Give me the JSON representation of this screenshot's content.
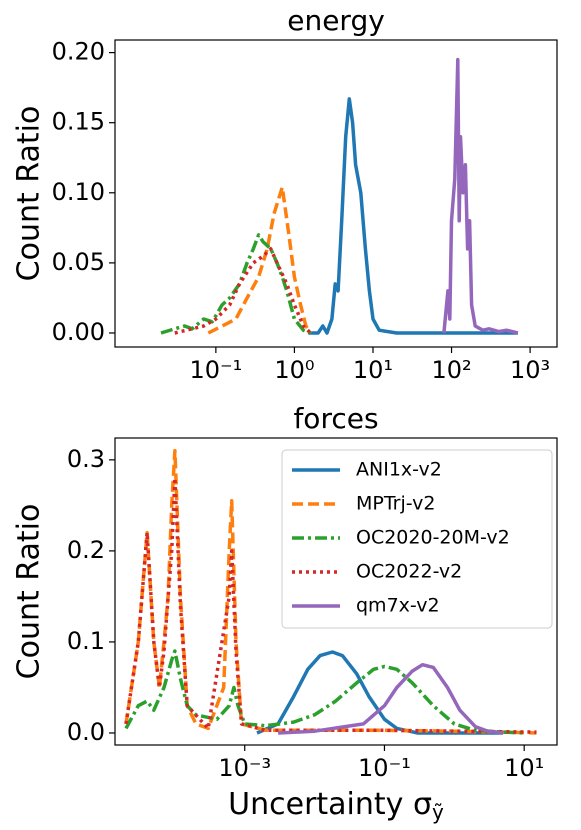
{
  "chart_data": [
    {
      "type": "line",
      "title": "energy",
      "ylabel": "Count Ratio",
      "xscale": "log",
      "xlim": [
        0.0052,
        2200
      ],
      "ylim": [
        -0.01,
        0.209
      ],
      "xticks": [
        {
          "value": 0.1,
          "label": "10⁻¹"
        },
        {
          "value": 1,
          "label": "10⁰"
        },
        {
          "value": 10,
          "label": "10¹"
        },
        {
          "value": 100,
          "label": "10²"
        },
        {
          "value": 1000,
          "label": "10³"
        }
      ],
      "yticks": [
        {
          "value": 0,
          "label": "0.00"
        },
        {
          "value": 0.05,
          "label": "0.05"
        },
        {
          "value": 0.1,
          "label": "0.10"
        },
        {
          "value": 0.15,
          "label": "0.15"
        },
        {
          "value": 0.2,
          "label": "0.20"
        }
      ],
      "series": [
        {
          "color": "#1f77b4",
          "linestyle": "solid",
          "x": [
            1.5,
            2,
            2.3,
            2.6,
            3,
            3.3,
            3.6,
            4,
            4.5,
            5,
            5.5,
            6,
            7,
            8,
            9,
            10,
            12,
            20,
            50,
            100,
            200,
            400,
            700
          ],
          "values": [
            0,
            0,
            0.005,
            0,
            0.01,
            0.035,
            0.03,
            0.08,
            0.14,
            0.167,
            0.15,
            0.12,
            0.1,
            0.06,
            0.03,
            0.01,
            0.002,
            0,
            0,
            0,
            0,
            0,
            0
          ]
        },
        {
          "color": "#ff7f0e",
          "linestyle": "dashed",
          "x": [
            0.08,
            0.12,
            0.18,
            0.25,
            0.35,
            0.45,
            0.55,
            0.7,
            0.85,
            1.0,
            1.2,
            1.4,
            1.6
          ],
          "values": [
            0,
            0.005,
            0.01,
            0.025,
            0.04,
            0.06,
            0.085,
            0.104,
            0.07,
            0.04,
            0.02,
            0.005,
            0
          ]
        },
        {
          "color": "#2ca02c",
          "linestyle": "dashdot",
          "x": [
            0.02,
            0.03,
            0.04,
            0.05,
            0.07,
            0.09,
            0.12,
            0.15,
            0.2,
            0.25,
            0.3,
            0.35,
            0.4,
            0.5,
            0.6,
            0.7,
            0.8,
            1.0,
            1.3,
            1.6
          ],
          "values": [
            0,
            0.003,
            0.005,
            0.003,
            0.01,
            0.008,
            0.02,
            0.025,
            0.035,
            0.05,
            0.06,
            0.07,
            0.065,
            0.06,
            0.05,
            0.04,
            0.03,
            0.01,
            0.002,
            0
          ]
        },
        {
          "color": "#d62728",
          "linestyle": "dotted",
          "x": [
            0.03,
            0.05,
            0.07,
            0.1,
            0.15,
            0.2,
            0.3,
            0.4,
            0.5,
            0.6,
            0.8,
            1,
            1.3,
            1.6
          ],
          "values": [
            0,
            0.003,
            0.005,
            0.01,
            0.02,
            0.035,
            0.05,
            0.055,
            0.06,
            0.05,
            0.035,
            0.02,
            0.005,
            0
          ]
        },
        {
          "color": "#9467bd",
          "linestyle": "solid",
          "x": [
            80,
            90,
            95,
            100,
            110,
            120,
            125,
            130,
            140,
            150,
            160,
            170,
            180,
            200,
            250,
            300,
            400,
            500,
            700
          ],
          "values": [
            0,
            0.03,
            0.01,
            0.08,
            0.11,
            0.195,
            0.08,
            0.14,
            0.1,
            0.12,
            0.06,
            0.08,
            0.02,
            0.005,
            0.002,
            0.003,
            0.001,
            0.002,
            0
          ]
        }
      ]
    },
    {
      "type": "line",
      "title": "forces",
      "ylabel": "Count Ratio",
      "xlabel": "Uncertainty σ",
      "xlabel_sub": "ỹ",
      "xscale": "log",
      "xlim": [
        1.39e-05,
        29.5
      ],
      "ylim": [
        -0.0132,
        0.324
      ],
      "legend": "upper right",
      "xticks": [
        {
          "value": 0.001,
          "label": "10⁻³"
        },
        {
          "value": 0.1,
          "label": "10⁻¹"
        },
        {
          "value": 10,
          "label": "10¹"
        }
      ],
      "yticks": [
        {
          "value": 0,
          "label": "0.0"
        },
        {
          "value": 0.1,
          "label": "0.1"
        },
        {
          "value": 0.2,
          "label": "0.2"
        },
        {
          "value": 0.3,
          "label": "0.3"
        }
      ],
      "series": [
        {
          "name": "ANI1x-v2",
          "color": "#1f77b4",
          "linestyle": "solid",
          "x": [
            0.0015,
            0.003,
            0.005,
            0.008,
            0.012,
            0.018,
            0.025,
            0.04,
            0.06,
            0.1,
            0.15,
            0.3,
            1,
            5
          ],
          "values": [
            0,
            0.01,
            0.04,
            0.07,
            0.085,
            0.089,
            0.085,
            0.065,
            0.04,
            0.015,
            0.005,
            0,
            0,
            0
          ]
        },
        {
          "name": "MPTrj-v2",
          "color": "#ff7f0e",
          "linestyle": "dashed",
          "x": [
            2e-05,
            3e-05,
            4e-05,
            5e-05,
            6e-05,
            7e-05,
            8e-05,
            9e-05,
            0.0001,
            0.00012,
            0.00015,
            0.0002,
            0.0003,
            0.0005,
            0.0006,
            0.00065,
            0.00075,
            0.0009,
            0.002,
            0.01,
            0.1,
            1,
            5,
            15
          ],
          "values": [
            0.01,
            0.1,
            0.22,
            0.1,
            0.05,
            0.1,
            0.15,
            0.25,
            0.31,
            0.15,
            0.03,
            0.01,
            0.005,
            0.05,
            0.2,
            0.255,
            0.1,
            0.01,
            0.003,
            0.003,
            0.003,
            0.002,
            0.001,
            0
          ]
        },
        {
          "name": "OC2020-20M-v2",
          "color": "#2ca02c",
          "linestyle": "dashdot",
          "x": [
            2e-05,
            3e-05,
            4e-05,
            5e-05,
            7e-05,
            9e-05,
            0.0001,
            0.00012,
            0.00015,
            0.0002,
            0.0004,
            0.0006,
            0.0007,
            0.0008,
            0.001,
            0.002,
            0.005,
            0.01,
            0.02,
            0.04,
            0.07,
            0.1,
            0.15,
            0.25,
            0.5,
            1,
            2,
            5,
            10
          ],
          "values": [
            0.005,
            0.03,
            0.035,
            0.025,
            0.05,
            0.08,
            0.09,
            0.06,
            0.03,
            0.02,
            0.015,
            0.03,
            0.05,
            0.03,
            0.01,
            0.008,
            0.012,
            0.02,
            0.035,
            0.055,
            0.07,
            0.073,
            0.07,
            0.055,
            0.03,
            0.01,
            0.003,
            0.001,
            0
          ]
        },
        {
          "name": "OC2022-v2",
          "color": "#d62728",
          "linestyle": "dotted",
          "x": [
            2e-05,
            3e-05,
            4e-05,
            5e-05,
            6e-05,
            7e-05,
            9e-05,
            0.0001,
            0.00012,
            0.00015,
            0.0003,
            0.0006,
            0.00065,
            0.00075,
            0.0009,
            0.002,
            0.1,
            15
          ],
          "values": [
            0.01,
            0.1,
            0.22,
            0.1,
            0.05,
            0.09,
            0.2,
            0.28,
            0.14,
            0.03,
            0.005,
            0.15,
            0.2,
            0.09,
            0.01,
            0.003,
            0.003,
            0.001
          ]
        },
        {
          "name": "qm7x-v2",
          "color": "#9467bd",
          "linestyle": "solid",
          "x": [
            0.003,
            0.01,
            0.05,
            0.1,
            0.15,
            0.25,
            0.35,
            0.5,
            0.8,
            1.2,
            2,
            3,
            5
          ],
          "values": [
            0,
            0.002,
            0.01,
            0.03,
            0.05,
            0.068,
            0.075,
            0.072,
            0.05,
            0.025,
            0.007,
            0.002,
            0
          ]
        }
      ]
    }
  ]
}
